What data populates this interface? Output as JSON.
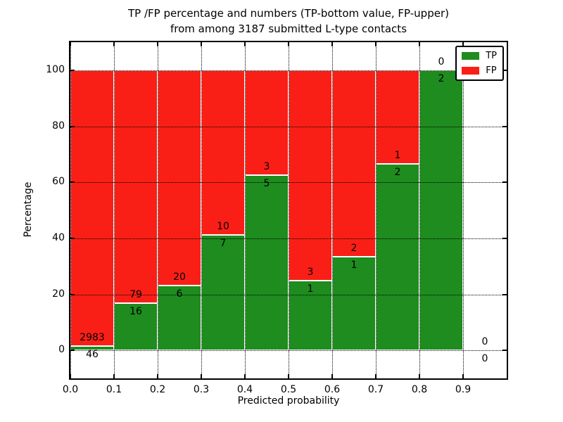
{
  "title": {
    "line1": "TP /FP percentage and numbers (TP-bottom value, FP-upper)",
    "line2": "from among 3187 submitted L-type contacts"
  },
  "axes": {
    "xlabel": "Predicted probability",
    "ylabel": "Percentage",
    "x_tick_labels": [
      "0.0",
      "0.1",
      "0.2",
      "0.3",
      "0.4",
      "0.5",
      "0.6",
      "0.7",
      "0.8",
      "0.9"
    ],
    "x_tick_values": [
      0.0,
      0.1,
      0.2,
      0.3,
      0.4,
      0.5,
      0.6,
      0.7,
      0.8,
      0.9
    ],
    "y_tick_labels": [
      "0",
      "20",
      "40",
      "60",
      "80",
      "100"
    ],
    "y_tick_values": [
      0,
      20,
      40,
      60,
      80,
      100
    ]
  },
  "legend": {
    "entries": [
      {
        "label": "TP",
        "color": "#1e8c1e"
      },
      {
        "label": "FP",
        "color": "#fa1f16"
      }
    ]
  },
  "colors": {
    "tp": "#1e8c1e",
    "fp": "#fa1f16",
    "grid": "#000000",
    "bar_edge": "#ffffff",
    "background": "#ffffff"
  },
  "chart_data": {
    "type": "bar",
    "stacked": true,
    "title": "TP /FP percentage and numbers (TP-bottom value, FP-upper) from among 3187 submitted L-type contacts",
    "xlabel": "Predicted probability",
    "ylabel": "Percentage",
    "xlim": [
      0.0,
      1.0
    ],
    "ylim": [
      -10,
      110
    ],
    "grid": "dotted",
    "legend_position": "upper right",
    "total_contacts": 3187,
    "series_names": [
      "TP",
      "FP"
    ],
    "bins": [
      {
        "range": "0.0-0.1",
        "x_start": 0.0,
        "x_end": 0.1,
        "tp": 46,
        "fp": 2983,
        "tp_percent": 1.5
      },
      {
        "range": "0.1-0.2",
        "x_start": 0.1,
        "x_end": 0.2,
        "tp": 16,
        "fp": 79,
        "tp_percent": 16.8
      },
      {
        "range": "0.2-0.3",
        "x_start": 0.2,
        "x_end": 0.3,
        "tp": 6,
        "fp": 20,
        "tp_percent": 23.1
      },
      {
        "range": "0.3-0.4",
        "x_start": 0.3,
        "x_end": 0.4,
        "tp": 7,
        "fp": 10,
        "tp_percent": 41.2
      },
      {
        "range": "0.4-0.5",
        "x_start": 0.4,
        "x_end": 0.5,
        "tp": 5,
        "fp": 3,
        "tp_percent": 62.5
      },
      {
        "range": "0.5-0.6",
        "x_start": 0.5,
        "x_end": 0.6,
        "tp": 1,
        "fp": 3,
        "tp_percent": 25.0
      },
      {
        "range": "0.6-0.7",
        "x_start": 0.6,
        "x_end": 0.7,
        "tp": 1,
        "fp": 2,
        "tp_percent": 33.3
      },
      {
        "range": "0.7-0.8",
        "x_start": 0.7,
        "x_end": 0.8,
        "tp": 2,
        "fp": 1,
        "tp_percent": 66.7
      },
      {
        "range": "0.8-0.9",
        "x_start": 0.8,
        "x_end": 0.9,
        "tp": 2,
        "fp": 0,
        "tp_percent": 100.0
      },
      {
        "range": "0.9-1.0",
        "x_start": 0.9,
        "x_end": 1.0,
        "tp": 0,
        "fp": 0,
        "tp_percent": null
      }
    ]
  }
}
